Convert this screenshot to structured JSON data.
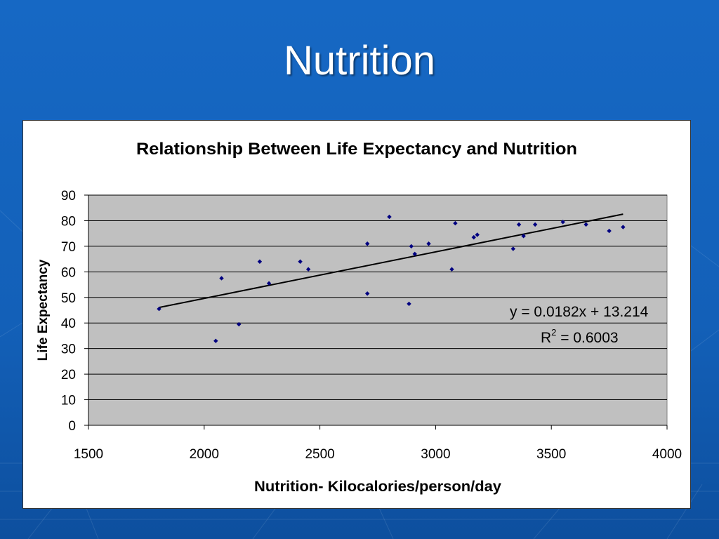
{
  "slide": {
    "title": "Nutrition",
    "colors": {
      "background": "#1565c0",
      "panel": "#ffffff",
      "plot_area": "#c0c0c0",
      "marker": "#000080",
      "trendline": "#000000"
    }
  },
  "chart_data": {
    "type": "scatter",
    "title": "Relationship Between Life Expectancy and Nutrition",
    "xlabel": "Nutrition- Kilocalories/person/day",
    "ylabel": "Life Expectancy",
    "xlim": [
      1500,
      4000
    ],
    "ylim": [
      0,
      90
    ],
    "xticks": [
      1500,
      2000,
      2500,
      3000,
      3500,
      4000
    ],
    "yticks": [
      0,
      10,
      20,
      30,
      40,
      50,
      60,
      70,
      80,
      90
    ],
    "grid": "horizontal",
    "legend": "none",
    "points": [
      {
        "x": 1805,
        "y": 45.5
      },
      {
        "x": 2050,
        "y": 33
      },
      {
        "x": 2075,
        "y": 57.5
      },
      {
        "x": 2150,
        "y": 39.5
      },
      {
        "x": 2240,
        "y": 64
      },
      {
        "x": 2280,
        "y": 55.5
      },
      {
        "x": 2415,
        "y": 64
      },
      {
        "x": 2450,
        "y": 61
      },
      {
        "x": 2705,
        "y": 71
      },
      {
        "x": 2705,
        "y": 51.5
      },
      {
        "x": 2800,
        "y": 81.5
      },
      {
        "x": 2885,
        "y": 47.5
      },
      {
        "x": 2895,
        "y": 70
      },
      {
        "x": 2910,
        "y": 67
      },
      {
        "x": 2970,
        "y": 71
      },
      {
        "x": 3070,
        "y": 61
      },
      {
        "x": 3085,
        "y": 79
      },
      {
        "x": 3165,
        "y": 73.5
      },
      {
        "x": 3180,
        "y": 74.5
      },
      {
        "x": 3335,
        "y": 69
      },
      {
        "x": 3360,
        "y": 78.5
      },
      {
        "x": 3380,
        "y": 74
      },
      {
        "x": 3430,
        "y": 78.5
      },
      {
        "x": 3550,
        "y": 79.5
      },
      {
        "x": 3650,
        "y": 78.5
      },
      {
        "x": 3750,
        "y": 76
      },
      {
        "x": 3810,
        "y": 77.5
      }
    ],
    "trendline": {
      "slope": 0.0182,
      "intercept": 13.214,
      "x_range": [
        1805,
        3810
      ],
      "equation": "y = 0.0182x + 13.214",
      "r2_label": "R",
      "r2_sup": "2",
      "r2_value": " = 0.6003"
    }
  }
}
